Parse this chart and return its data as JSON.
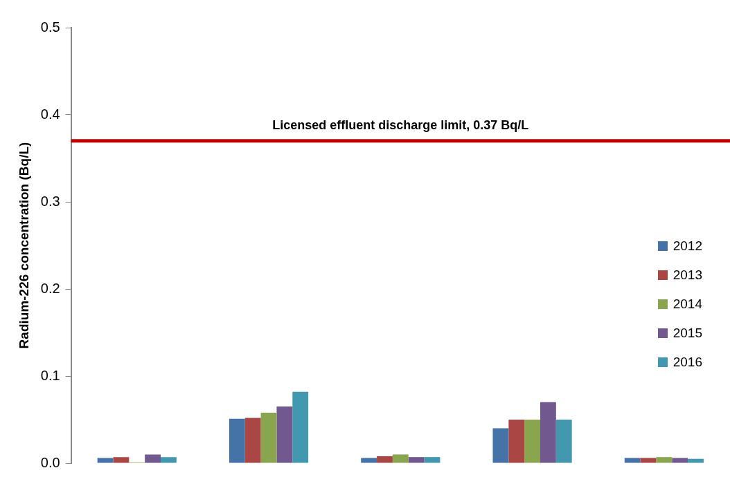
{
  "chart_data": {
    "type": "bar",
    "ylabel": "Radium-226 concentration (Bq/L)",
    "categories": [
      null,
      null,
      null,
      null,
      null
    ],
    "series": [
      {
        "name": "2012",
        "color": "#4572a7",
        "values": [
          0.006,
          0.051,
          0.006,
          0.04,
          0.006
        ]
      },
      {
        "name": "2013",
        "color": "#aa4643",
        "values": [
          0.007,
          0.052,
          0.008,
          0.05,
          0.006
        ]
      },
      {
        "name": "2014",
        "color": "#89a54e",
        "values": [
          0.001,
          0.058,
          0.01,
          0.05,
          0.007
        ]
      },
      {
        "name": "2015",
        "color": "#71588f",
        "values": [
          0.01,
          0.065,
          0.007,
          0.07,
          0.006
        ]
      },
      {
        "name": "2016",
        "color": "#4198af",
        "values": [
          0.007,
          0.082,
          0.007,
          0.05,
          0.005
        ]
      }
    ],
    "ylim": [
      0,
      0.5
    ],
    "yticks": [
      {
        "value": 0,
        "label": "0.0"
      },
      0.1,
      0.2,
      0.3,
      0.4,
      0.5
    ],
    "ref_lines": [
      {
        "axis": "y",
        "value": 0.37,
        "label": "Licensed effluent discharge limit, 0.37 Bq/L",
        "color": "#c00000"
      }
    ],
    "grid": false,
    "legend": "right",
    "tick_labels": "y"
  }
}
